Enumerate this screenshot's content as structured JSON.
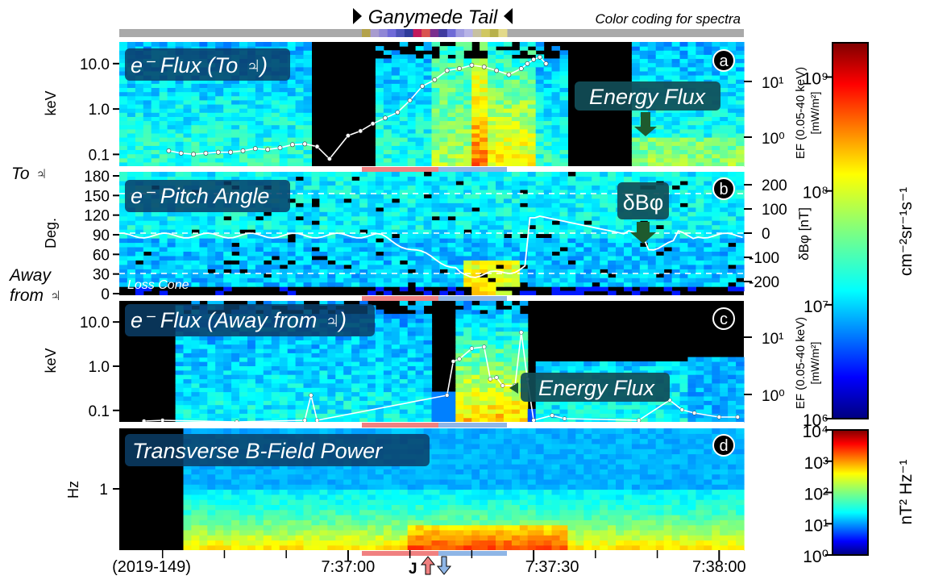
{
  "figure": {
    "event_title": "Ganymede Tail",
    "color_coding_note": "Color coding for spectra",
    "date_label": "(2019-149)",
    "time_ticks": [
      "7:37:00",
      "7:37:30",
      "7:38:00"
    ],
    "j_label": "J"
  },
  "colors": {
    "panel_bg": "#000000",
    "flux_line": "#ffffff",
    "label_box": "#0b3d66",
    "callout_box": "#114d57",
    "callout_arrow": "#1e5a2e",
    "separator": "#ffffff",
    "bar_gray": "#a9a9a9",
    "bar_red": "#f08080",
    "bar_blue": "#8fb6e6"
  },
  "chart_data": [
    {
      "id": "a",
      "type": "heatmap",
      "title": "e⁻ Flux (To ♃)",
      "panel_letter": "a",
      "ylabel": "keV",
      "y_scale": "log",
      "ylim": [
        0.055,
        30
      ],
      "y_ticks": [
        0.1,
        1.0,
        10.0
      ],
      "y_tick_labels": [
        "0.1",
        "1.0",
        "10.0"
      ],
      "right_axis_label": "EF (0.05-40 keV)",
      "right_axis_units": "[mW/m²]",
      "right_axis_ticks": [
        "10⁰",
        "10¹"
      ],
      "annotation": "Energy Flux",
      "series": [
        {
          "name": "Energy Flux",
          "x_seconds": [
            -29,
            -27,
            -25,
            -23,
            -21,
            -19,
            -17,
            -15,
            -13,
            -11,
            -9,
            -7,
            -5,
            -3,
            0,
            2,
            4,
            6,
            8,
            10,
            12,
            14,
            16,
            18,
            20,
            22,
            24,
            26,
            28,
            29,
            30,
            31,
            32
          ],
          "values": [
            0.55,
            0.5,
            0.48,
            0.5,
            0.52,
            0.52,
            0.55,
            0.6,
            0.58,
            0.62,
            0.7,
            0.72,
            0.65,
            0.4,
            1.0,
            1.2,
            1.6,
            2.0,
            2.5,
            4.0,
            7.0,
            9.0,
            13.0,
            14.0,
            16.0,
            15.0,
            13.0,
            11.0,
            14.0,
            17.0,
            20.0,
            22.0,
            17.0
          ]
        }
      ]
    },
    {
      "id": "b",
      "type": "heatmap",
      "title": "e⁻ Pitch Angle",
      "panel_letter": "b",
      "ylabel": "Deg.",
      "ylim": [
        0,
        180
      ],
      "y_ticks": [
        0,
        30,
        60,
        90,
        120,
        150,
        180
      ],
      "top_label": "To ♃",
      "bottom_label": "Away from ♃",
      "loss_cone_label": "Loss Cone",
      "right_axis_label": "δBφ [nT]",
      "right_axis_ticks": [
        -200,
        -100,
        0,
        100,
        200
      ],
      "annotation": "δBφ"
    },
    {
      "id": "c",
      "type": "heatmap",
      "title": "e⁻ Flux (Away from ♃)",
      "panel_letter": "c",
      "ylabel": "keV",
      "y_scale": "log",
      "ylim": [
        0.055,
        30
      ],
      "y_ticks": [
        0.1,
        1.0,
        10.0
      ],
      "y_tick_labels": [
        "0.1",
        "1.0",
        "10.0"
      ],
      "right_axis_label": "EF (0.05-40 keV)",
      "right_axis_units": "[mW/m²]",
      "right_axis_ticks": [
        "10⁰",
        "10¹"
      ],
      "annotation": "Energy Flux"
    },
    {
      "id": "d",
      "type": "heatmap",
      "title": "Transverse B-Field Power",
      "panel_letter": "d",
      "ylabel": "Hz",
      "y_ticks": [
        1
      ],
      "y_tick_labels": [
        "1"
      ]
    },
    {
      "id": "colorbar_electron",
      "type": "heatmap",
      "label": "cm⁻²sr⁻¹s⁻¹",
      "scale": "log",
      "range": [
        1000000,
        2000000000
      ],
      "tick_labels": [
        "10⁶",
        "10⁷",
        "10⁸",
        "10⁹"
      ]
    },
    {
      "id": "colorbar_power",
      "type": "heatmap",
      "label": "nT² Hz⁻¹",
      "scale": "log",
      "range": [
        1,
        10000
      ],
      "tick_labels": [
        "10⁰",
        "10¹",
        "10²",
        "10³",
        "10⁴"
      ]
    }
  ]
}
